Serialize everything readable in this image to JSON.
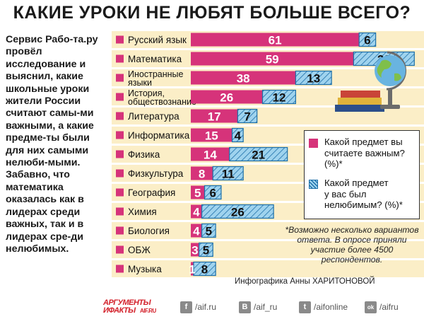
{
  "title": "КАКИЕ УРОКИ НЕ ЛЮБЯТ БОЛЬШЕ ВСЕГО?",
  "lead_text": "Сервис Рабо-та.ру провёл исследование и выяснил, какие школьные уроки жители России считают самы-ми важными, а какие предме-ты были для них самыми нелюби-мыми. Забавно, что математика оказалась как в лидерах среди важных, так и в лидерах сре-ди нелюбимых.",
  "legend": {
    "important": "Какой предмет вы\nсчитаете важным?\n(%)*",
    "disliked": "Какой предмет\nу вас был\nнелюбимым? (%)*"
  },
  "note": "*Возможно несколько вариантов ответа. В опросе приняли участие более 4500 респондентов.",
  "credit": "Инфографика Анны ХАРИТОНОВОЙ",
  "footer": {
    "logo_top": "АРГУМЕНТЫ",
    "logo_bottom": "ИФАКТЫ",
    "logo_site": "AIF.RU",
    "links": [
      {
        "icon": "f",
        "text": "/aif.ru"
      },
      {
        "icon": "В",
        "text": "/aif_ru"
      },
      {
        "icon": "t",
        "text": "/aifonline"
      },
      {
        "icon": "ok",
        "text": "/aifru"
      }
    ]
  },
  "colors": {
    "important": "#d6337a",
    "disliked": "#7fc3e6",
    "row_bg": "#fbeec7",
    "text": "#111111"
  },
  "chart_data": {
    "type": "bar",
    "orientation": "horizontal",
    "categories": [
      "Русский язык",
      "Математика",
      "Иностранные\nязыки",
      "История,\nобществознание",
      "Литература",
      "Информатика",
      "Физика",
      "Физкультура",
      "География",
      "Химия",
      "Биология",
      "ОБЖ",
      "Музыка"
    ],
    "series": [
      {
        "name": "Какой предмет вы считаете важным? (%)*",
        "values": [
          61,
          59,
          38,
          26,
          17,
          15,
          14,
          8,
          5,
          4,
          4,
          3,
          1
        ]
      },
      {
        "name": "Какой предмет у вас был нелюбимым? (%)*",
        "values": [
          6,
          22,
          13,
          12,
          7,
          4,
          21,
          11,
          6,
          26,
          5,
          5,
          8
        ]
      }
    ],
    "stacked": true,
    "xlim": [
      0,
      84
    ]
  }
}
